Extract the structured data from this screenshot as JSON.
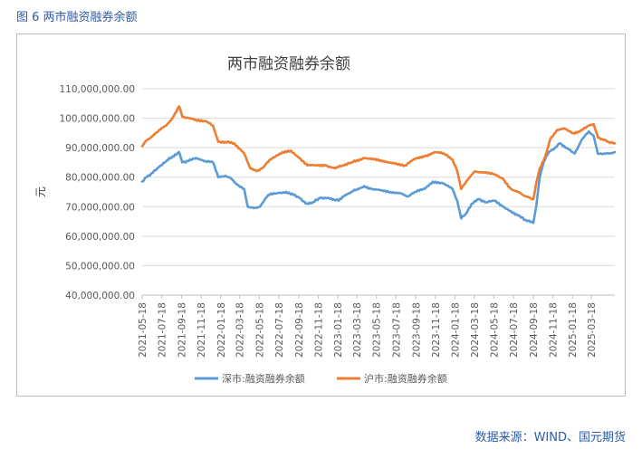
{
  "figure": {
    "caption": "图 6 两市融资融券余额",
    "source": "数据来源：WIND、国元期货"
  },
  "chart_data": {
    "type": "line",
    "title": "两市融资融券余额",
    "ylabel": "元",
    "xlabel": "",
    "ylim": [
      40000000,
      110000000
    ],
    "yticks": [
      40000000,
      50000000,
      60000000,
      70000000,
      80000000,
      90000000,
      100000000,
      110000000
    ],
    "ytick_labels": [
      "40,000,000.00",
      "50,000,000.00",
      "60,000,000.00",
      "70,000,000.00",
      "80,000,000.00",
      "90,000,000.00",
      "100,000,000.00",
      "110,000,000.00"
    ],
    "x_start": "2021-05-18",
    "x_end": "2025-05-30",
    "x_tick_labels": [
      "2021-05-18",
      "2021-07-18",
      "2021-09-18",
      "2021-11-18",
      "2022-01-18",
      "2022-03-18",
      "2022-05-18",
      "2022-07-18",
      "2022-09-18",
      "2022-11-18",
      "2023-01-18",
      "2023-03-18",
      "2023-05-18",
      "2023-07-18",
      "2023-09-18",
      "2023-11-18",
      "2024-01-18",
      "2024-03-18",
      "2024-05-18",
      "2024-07-18",
      "2024-09-18",
      "2024-11-18",
      "2025-01-18",
      "2025-03-18"
    ],
    "grid": true,
    "legend_position": "bottom",
    "series": [
      {
        "name": "深市:融资融券余额",
        "color": "#5b9bd5",
        "points": [
          [
            "2021-05-18",
            78500000
          ],
          [
            "2021-06-01",
            80000000
          ],
          [
            "2021-06-20",
            81500000
          ],
          [
            "2021-07-10",
            83500000
          ],
          [
            "2021-08-01",
            85500000
          ],
          [
            "2021-08-20",
            87000000
          ],
          [
            "2021-09-10",
            88500000
          ],
          [
            "2021-09-20",
            85000000
          ],
          [
            "2021-10-10",
            85500000
          ],
          [
            "2021-11-01",
            86500000
          ],
          [
            "2021-12-01",
            85500000
          ],
          [
            "2021-12-25",
            85000000
          ],
          [
            "2022-01-10",
            80000000
          ],
          [
            "2022-02-01",
            80500000
          ],
          [
            "2022-02-20",
            79500000
          ],
          [
            "2022-03-10",
            77500000
          ],
          [
            "2022-04-01",
            76000000
          ],
          [
            "2022-04-12",
            70000000
          ],
          [
            "2022-05-01",
            69500000
          ],
          [
            "2022-05-20",
            70000000
          ],
          [
            "2022-06-15",
            74000000
          ],
          [
            "2022-07-10",
            74500000
          ],
          [
            "2022-08-10",
            75000000
          ],
          [
            "2022-09-01",
            74000000
          ],
          [
            "2022-09-20",
            73000000
          ],
          [
            "2022-10-10",
            71000000
          ],
          [
            "2022-11-01",
            71500000
          ],
          [
            "2022-11-25",
            73000000
          ],
          [
            "2022-12-20",
            73000000
          ],
          [
            "2023-01-05",
            72500000
          ],
          [
            "2023-01-20",
            72000000
          ],
          [
            "2023-02-10",
            74000000
          ],
          [
            "2023-03-01",
            75000000
          ],
          [
            "2023-03-20",
            76000000
          ],
          [
            "2023-04-10",
            77000000
          ],
          [
            "2023-05-01",
            76000000
          ],
          [
            "2023-06-01",
            75500000
          ],
          [
            "2023-07-01",
            75000000
          ],
          [
            "2023-08-01",
            74500000
          ],
          [
            "2023-08-25",
            73500000
          ],
          [
            "2023-09-15",
            75000000
          ],
          [
            "2023-10-15",
            76000000
          ],
          [
            "2023-11-10",
            78500000
          ],
          [
            "2023-12-10",
            78000000
          ],
          [
            "2024-01-10",
            76000000
          ],
          [
            "2024-01-25",
            72000000
          ],
          [
            "2024-02-06",
            66000000
          ],
          [
            "2024-02-20",
            67500000
          ],
          [
            "2024-03-10",
            71000000
          ],
          [
            "2024-04-01",
            72500000
          ],
          [
            "2024-04-25",
            71500000
          ],
          [
            "2024-05-20",
            72000000
          ],
          [
            "2024-06-15",
            70000000
          ],
          [
            "2024-07-10",
            68500000
          ],
          [
            "2024-08-01",
            67000000
          ],
          [
            "2024-08-25",
            65500000
          ],
          [
            "2024-09-18",
            64500000
          ],
          [
            "2024-09-27",
            70000000
          ],
          [
            "2024-10-08",
            80000000
          ],
          [
            "2024-10-20",
            85000000
          ],
          [
            "2024-11-05",
            88500000
          ],
          [
            "2024-11-25",
            90000000
          ],
          [
            "2024-12-10",
            91500000
          ],
          [
            "2025-01-05",
            89500000
          ],
          [
            "2025-01-25",
            88000000
          ],
          [
            "2025-02-15",
            92500000
          ],
          [
            "2025-03-10",
            95500000
          ],
          [
            "2025-03-25",
            94000000
          ],
          [
            "2025-04-05",
            89000000
          ],
          [
            "2025-04-07",
            88000000
          ],
          [
            "2025-05-10",
            88000000
          ],
          [
            "2025-05-30",
            88500000
          ]
        ]
      },
      {
        "name": "沪市:融资融券余额",
        "color": "#ed7d31",
        "points": [
          [
            "2021-05-18",
            90500000
          ],
          [
            "2021-06-01",
            92500000
          ],
          [
            "2021-06-20",
            94000000
          ],
          [
            "2021-07-10",
            96000000
          ],
          [
            "2021-08-01",
            97500000
          ],
          [
            "2021-08-20",
            100000000
          ],
          [
            "2021-09-10",
            104000000
          ],
          [
            "2021-09-20",
            100500000
          ],
          [
            "2021-10-10",
            100000000
          ],
          [
            "2021-11-01",
            99500000
          ],
          [
            "2021-12-01",
            99000000
          ],
          [
            "2021-12-25",
            97500000
          ],
          [
            "2022-01-10",
            92000000
          ],
          [
            "2022-02-01",
            92000000
          ],
          [
            "2022-03-01",
            91500000
          ],
          [
            "2022-04-01",
            88000000
          ],
          [
            "2022-04-20",
            83000000
          ],
          [
            "2022-05-10",
            82000000
          ],
          [
            "2022-06-01",
            83500000
          ],
          [
            "2022-06-20",
            86000000
          ],
          [
            "2022-07-20",
            88000000
          ],
          [
            "2022-08-25",
            89000000
          ],
          [
            "2022-09-20",
            86500000
          ],
          [
            "2022-10-15",
            84000000
          ],
          [
            "2022-11-15",
            84000000
          ],
          [
            "2022-12-10",
            84000000
          ],
          [
            "2023-01-10",
            83000000
          ],
          [
            "2023-02-01",
            84000000
          ],
          [
            "2023-03-01",
            85000000
          ],
          [
            "2023-04-10",
            86500000
          ],
          [
            "2023-05-10",
            86000000
          ],
          [
            "2023-06-10",
            85500000
          ],
          [
            "2023-07-15",
            84500000
          ],
          [
            "2023-08-15",
            84000000
          ],
          [
            "2023-09-10",
            86000000
          ],
          [
            "2023-10-15",
            87000000
          ],
          [
            "2023-11-15",
            88500000
          ],
          [
            "2023-12-15",
            88000000
          ],
          [
            "2024-01-10",
            86000000
          ],
          [
            "2024-01-25",
            82000000
          ],
          [
            "2024-02-06",
            76000000
          ],
          [
            "2024-02-25",
            79000000
          ],
          [
            "2024-03-20",
            82000000
          ],
          [
            "2024-04-20",
            81500000
          ],
          [
            "2024-05-20",
            81000000
          ],
          [
            "2024-06-15",
            79500000
          ],
          [
            "2024-07-10",
            76000000
          ],
          [
            "2024-08-01",
            75000000
          ],
          [
            "2024-08-25",
            73500000
          ],
          [
            "2024-09-18",
            72500000
          ],
          [
            "2024-09-27",
            78000000
          ],
          [
            "2024-10-08",
            83000000
          ],
          [
            "2024-10-25",
            87000000
          ],
          [
            "2024-11-10",
            93000000
          ],
          [
            "2024-12-01",
            96000000
          ],
          [
            "2024-12-25",
            96500000
          ],
          [
            "2025-01-20",
            95000000
          ],
          [
            "2025-02-10",
            95500000
          ],
          [
            "2025-03-10",
            97500000
          ],
          [
            "2025-03-25",
            98000000
          ],
          [
            "2025-04-07",
            93500000
          ],
          [
            "2025-05-10",
            92000000
          ],
          [
            "2025-05-30",
            91500000
          ]
        ]
      }
    ]
  }
}
